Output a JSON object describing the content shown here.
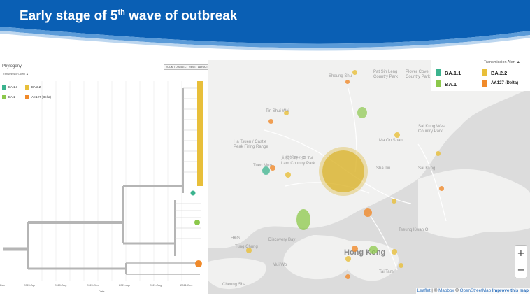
{
  "header": {
    "title_prefix": "Early stage of 5",
    "title_sup": "th",
    "title_suffix": " wave of outbreak",
    "bg_color": "#0a5fb4"
  },
  "phylogeny": {
    "title": "Phylogeny",
    "subtitle": "Transmission Alert ▲",
    "zoom_button": "ZOOM TO SELECTED",
    "reset_button": "RESET LAYOUT",
    "legend": [
      {
        "label": "BA.1.1",
        "color": "#3bb38e"
      },
      {
        "label": "BA.2.2",
        "color": "#e8bf3a"
      },
      {
        "label": "BA.1",
        "color": "#8cc84b"
      },
      {
        "label": "AY.127 (Delta)",
        "color": "#f08a2a"
      }
    ],
    "x_ticks": [
      "Dec",
      "2020-Apr",
      "2020-Aug",
      "2020-Dec",
      "2021-Apr",
      "2021-Aug",
      "2021-Dec"
    ],
    "x_label": "Date"
  },
  "map": {
    "legend_title": "Transmission Alert ▲",
    "legend": [
      {
        "label": "BA.1.1",
        "color": "#3bb38e"
      },
      {
        "label": "BA.2.2",
        "color": "#e8bf3a"
      },
      {
        "label": "BA.1",
        "color": "#8cc84b"
      },
      {
        "label": "AY.127 (Delta)",
        "color": "#f08a2a"
      }
    ],
    "places": {
      "sheung_shui": "Sheung Shui",
      "pat_sin_leng": "Pat Sin Leng\nCountry Park",
      "plover_cove": "Plover Cove\nCountry Park",
      "tin_shui_wai": "Tin Shui Wai",
      "ma_on_shan": "Ma On Shan",
      "sai_kung_west": "Sai Kung West\nCountry Park",
      "ha_tsuen": "Ha Tsuen / Castle\nPeak Firing Range",
      "tai_lam": "大欖郊野公園 Tai\nLam Country Park",
      "tuen_mun": "Tuen Mun",
      "sha_tin": "Sha Tin",
      "sai_kung": "Sai Kung",
      "hkg": "HKG",
      "discovery_bay": "Discovery Bay",
      "tung_chung": "Tung Chung",
      "hong_kong": "Hong Kong",
      "tseung_kwan_o": "Tseung Kwan O",
      "mui_wo": "Mui Wo",
      "tai_tam": "Tai Tam",
      "cheung_sha": "Cheung Sha"
    },
    "zoom_in": "+",
    "zoom_out": "−",
    "attribution_leaflet": "Leaflet",
    "attribution_sep1": " | © ",
    "attribution_mapbox": "Mapbox",
    "attribution_sep2": " © ",
    "attribution_osm": "OpenStreetMap",
    "attribution_improve": "Improve this map"
  }
}
